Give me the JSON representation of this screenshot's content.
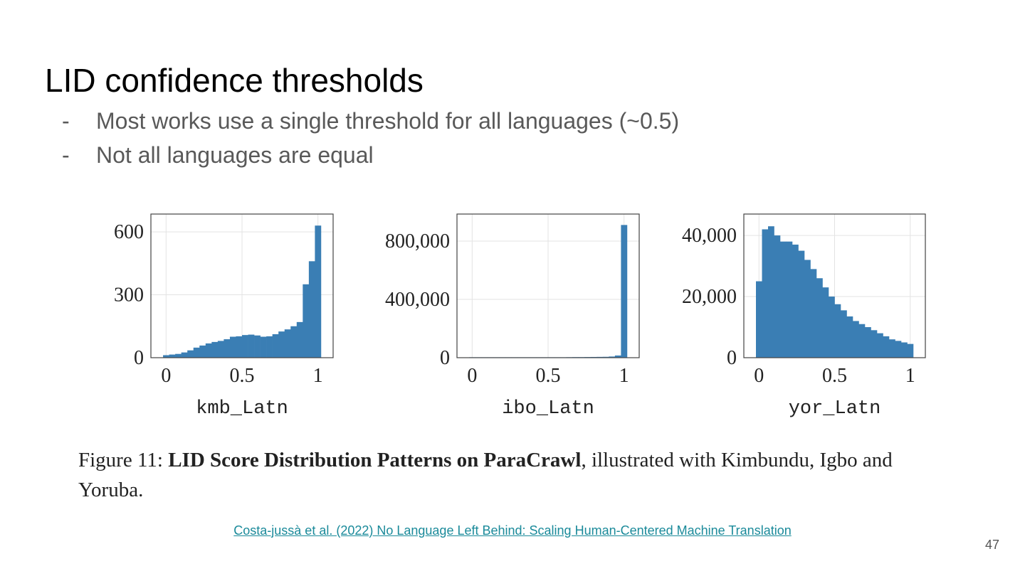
{
  "title": "LID confidence thresholds",
  "bullets": [
    "Most works use a single threshold for all languages (~0.5)",
    "Not all languages are equal"
  ],
  "chart_data": [
    {
      "type": "histogram",
      "xlabel": "kmb_Latn",
      "color": "#3a7eb4",
      "grid": true,
      "bins": [
        -0.02,
        0.02,
        0.06,
        0.1,
        0.14,
        0.18,
        0.22,
        0.26,
        0.3,
        0.34,
        0.38,
        0.42,
        0.46,
        0.5,
        0.54,
        0.58,
        0.62,
        0.66,
        0.7,
        0.74,
        0.78,
        0.82,
        0.86,
        0.9,
        0.94,
        0.98,
        1.02
      ],
      "values": [
        12,
        15,
        18,
        25,
        35,
        48,
        58,
        68,
        75,
        80,
        88,
        100,
        102,
        108,
        110,
        106,
        100,
        102,
        112,
        125,
        135,
        150,
        170,
        350,
        460,
        630
      ],
      "xlim": [
        -0.1,
        1.1
      ],
      "ylim": [
        0,
        685
      ],
      "xticks": [
        0,
        0.5,
        1
      ],
      "yticks": [
        0,
        300,
        600
      ]
    },
    {
      "type": "histogram",
      "xlabel": "ibo_Latn",
      "color": "#3a7eb4",
      "grid": true,
      "bins": [
        -0.02,
        0.02,
        0.06,
        0.1,
        0.14,
        0.18,
        0.22,
        0.26,
        0.3,
        0.34,
        0.38,
        0.42,
        0.46,
        0.5,
        0.54,
        0.58,
        0.62,
        0.66,
        0.7,
        0.74,
        0.78,
        0.82,
        0.86,
        0.9,
        0.94,
        0.98,
        1.02
      ],
      "values": [
        3000,
        3000,
        3000,
        3000,
        3000,
        3000,
        3000,
        3000,
        3000,
        3000,
        3000,
        3000,
        3000,
        3000,
        3000,
        3000,
        3500,
        4000,
        4000,
        4500,
        5000,
        5500,
        6000,
        8000,
        15000,
        910000
      ],
      "xlim": [
        -0.1,
        1.1
      ],
      "ylim": [
        0,
        985000
      ],
      "xticks": [
        0,
        0.5,
        1
      ],
      "yticks": [
        0,
        {
          "value": 400000,
          "label": "400,000"
        },
        {
          "value": 800000,
          "label": "800,000"
        }
      ]
    },
    {
      "type": "histogram",
      "xlabel": "yor_Latn",
      "color": "#3a7eb4",
      "grid": true,
      "bins": [
        -0.02,
        0.02,
        0.06,
        0.1,
        0.14,
        0.18,
        0.22,
        0.26,
        0.3,
        0.34,
        0.38,
        0.42,
        0.46,
        0.5,
        0.54,
        0.58,
        0.62,
        0.66,
        0.7,
        0.74,
        0.78,
        0.82,
        0.86,
        0.9,
        0.94,
        0.98,
        1.02
      ],
      "values": [
        25000,
        42000,
        43000,
        40000,
        38000,
        38000,
        37000,
        35000,
        32000,
        29000,
        26000,
        23000,
        20000,
        17500,
        15500,
        13500,
        12000,
        11000,
        10000,
        9000,
        8000,
        7000,
        6000,
        5500,
        5000,
        4500
      ],
      "xlim": [
        -0.1,
        1.1
      ],
      "ylim": [
        0,
        47000
      ],
      "xticks": [
        0,
        0.5,
        1
      ],
      "yticks": [
        0,
        {
          "value": 20000,
          "label": "20,000"
        },
        {
          "value": 40000,
          "label": "40,000"
        }
      ]
    }
  ],
  "caption": {
    "label": "Figure 11:",
    "bold": "LID Score Distribution Patterns on ParaCrawl",
    "rest": ", illustrated with Kimbundu, Igbo and Yoruba."
  },
  "link": "Costa-jussà et al. (2022) No Language Left Behind: Scaling Human-Centered Machine Translation",
  "page_number": "47"
}
